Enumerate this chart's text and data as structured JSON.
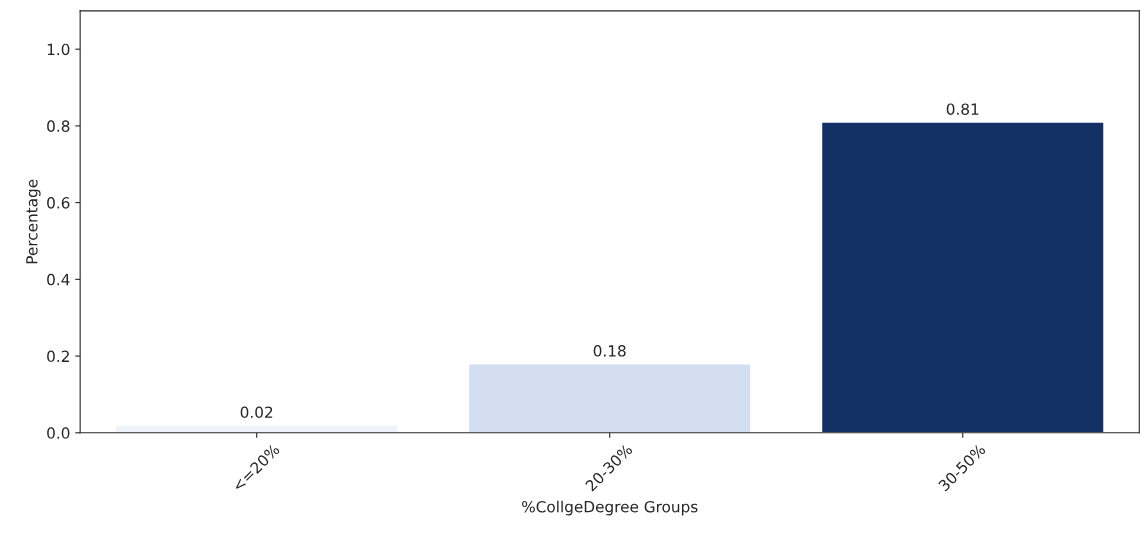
{
  "chart_data": {
    "type": "bar",
    "xlabel": "%CollgeDegree Groups",
    "ylabel": "Percentage",
    "categories": [
      "<=20%",
      "20-30%",
      "30-50%"
    ],
    "values": [
      0.02,
      0.18,
      0.81
    ],
    "colors": [
      "#eef3fa",
      "#d3dff0",
      "#143166"
    ],
    "ylim": [
      0,
      1.1
    ],
    "yticks": [
      {
        "value": 0,
        "label": "0.0"
      },
      {
        "value": 0.2,
        "label": "0.2"
      },
      {
        "value": 0.4,
        "label": "0.4"
      },
      {
        "value": 0.6,
        "label": "0.6"
      },
      {
        "value": 0.8,
        "label": "0.8"
      },
      {
        "value": 1.0,
        "label": "1.0"
      }
    ],
    "data_labels": true,
    "grid": false
  }
}
